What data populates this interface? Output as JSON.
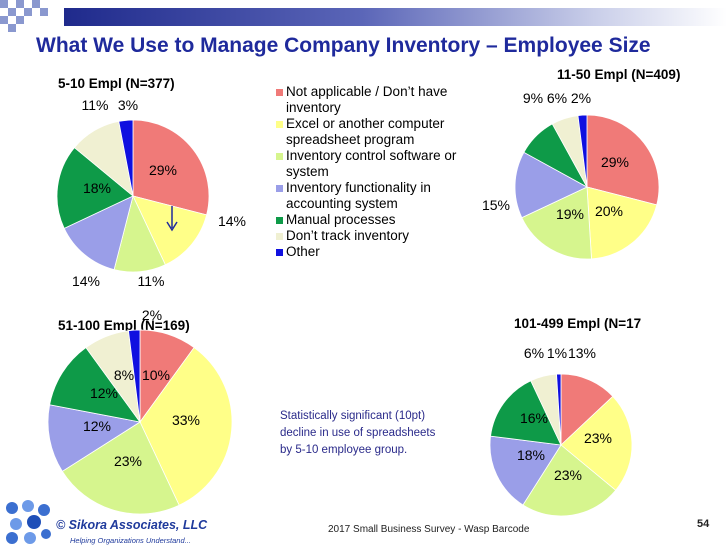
{
  "slide": {
    "title": "What We Use to Manage Company Inventory – Employee Size",
    "note": "Statistically significant (10pt) decline in use of spreadsheets by 5-10 employee group.",
    "footer": "2017 Small Business Survey - Wasp Barcode",
    "page_number": "54",
    "logo_name": "© Sikora Associates, LLC",
    "logo_tagline": "Helping Organizations Understand..."
  },
  "legend": [
    {
      "label": "Not applicable / Don’t have inventory",
      "color": "#f07a78"
    },
    {
      "label": "Excel or another computer spreadsheet program",
      "color": "#ffff88"
    },
    {
      "label": "Inventory control software or system",
      "color": "#d6f58e"
    },
    {
      "label": "Inventory functionality in accounting system",
      "color": "#9a9ee8"
    },
    {
      "label": "Manual processes",
      "color": "#0e9a48"
    },
    {
      "label": "Don’t track inventory",
      "color": "#f0f0d2"
    },
    {
      "label": "Other",
      "color": "#1010e0"
    }
  ],
  "chart_data": [
    {
      "type": "pie",
      "title": "5-10 Empl (N=377)",
      "categories": [
        "Not applicable / Don’t have inventory",
        "Excel or another computer spreadsheet program",
        "Inventory control software or system",
        "Inventory functionality in accounting system",
        "Manual processes",
        "Don’t track inventory",
        "Other"
      ],
      "values": [
        29,
        14,
        11,
        14,
        18,
        11,
        3
      ],
      "labels": [
        "29%",
        "14%",
        "11%",
        "14%",
        "18%",
        "11%",
        "3%"
      ]
    },
    {
      "type": "pie",
      "title": "11-50 Empl (N=409)",
      "categories": [
        "Not applicable / Don’t have inventory",
        "Excel or another computer spreadsheet program",
        "Inventory control software or system",
        "Inventory functionality in accounting system",
        "Manual processes",
        "Don’t track inventory",
        "Other"
      ],
      "values": [
        29,
        20,
        19,
        15,
        9,
        6,
        2
      ],
      "labels": [
        "29%",
        "20%",
        "19%",
        "15%",
        "9%",
        "6%",
        "2%"
      ]
    },
    {
      "type": "pie",
      "title": "51-100 Empl (N=169)",
      "categories": [
        "Not applicable / Don’t have inventory",
        "Excel or another computer spreadsheet program",
        "Inventory control software or system",
        "Inventory functionality in accounting system",
        "Manual processes",
        "Don’t track inventory",
        "Other"
      ],
      "values": [
        10,
        33,
        23,
        12,
        12,
        8,
        2
      ],
      "labels": [
        "10%",
        "33%",
        "23%",
        "12%",
        "12%",
        "8%",
        "2%"
      ]
    },
    {
      "type": "pie",
      "title": "101-499 Empl (N=17",
      "categories": [
        "Not applicable / Don’t have inventory",
        "Excel or another computer spreadsheet program",
        "Inventory control software or system",
        "Inventory functionality in accounting system",
        "Manual processes",
        "Don’t track inventory",
        "Other"
      ],
      "values": [
        13,
        23,
        23,
        18,
        16,
        6,
        1
      ],
      "labels": [
        "13%",
        "23%",
        "23%",
        "18%",
        "16%",
        "6%",
        "1%"
      ]
    }
  ]
}
